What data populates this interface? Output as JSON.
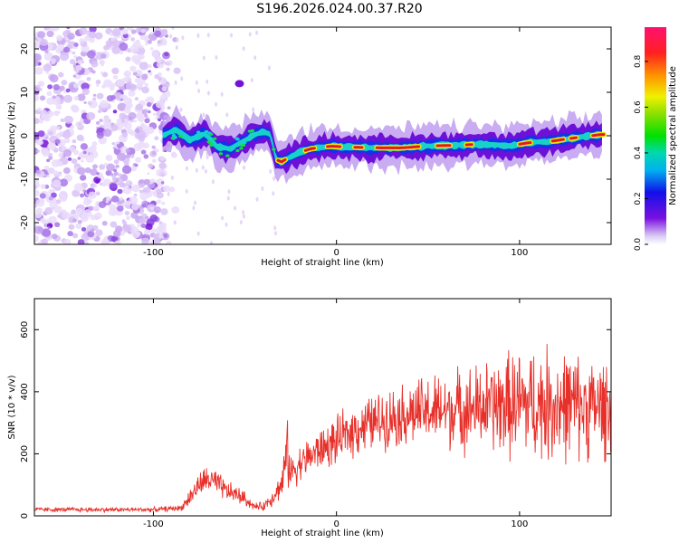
{
  "title": "S196.2026.024.00.37.R20",
  "colors": {
    "snr_line": "#e8302a",
    "axis": "#000000",
    "spec_low": "#c9a6f2",
    "spec_mid": "#6a0fd8",
    "spec_hot": "#e0192a"
  },
  "chart_data": [
    {
      "type": "heatmap",
      "title": "",
      "xlabel": "Height of straight line (km)",
      "ylabel": "Frequency (Hz)",
      "xlim": [
        -165,
        150
      ],
      "ylim": [
        -25,
        25
      ],
      "x_ticks": [
        -100,
        0,
        100
      ],
      "x_tick_labels": [
        "-100",
        "0",
        "100"
      ],
      "y_ticks": [
        -20,
        -10,
        0,
        10,
        20
      ],
      "y_tick_labels": [
        "-20",
        "-10",
        "0",
        "10",
        "20"
      ],
      "ridge": {
        "x": [
          -95,
          -88,
          -80,
          -72,
          -65,
          -58,
          -52,
          -46,
          -40,
          -36,
          -33,
          -30,
          -26,
          -20,
          -14,
          -8,
          -2,
          5,
          15,
          25,
          35,
          45,
          55,
          65,
          75,
          85,
          95,
          105,
          115,
          125,
          135,
          145
        ],
        "freq": [
          0.0,
          1.5,
          -1.0,
          0.5,
          -2.5,
          -3.0,
          -1.5,
          0.0,
          1.0,
          0.2,
          -5.5,
          -6.0,
          -5.0,
          -3.8,
          -3.0,
          -2.6,
          -2.4,
          -2.6,
          -2.7,
          -2.8,
          -2.8,
          -2.5,
          -2.3,
          -2.2,
          -2.0,
          -2.1,
          -2.3,
          -1.6,
          -1.4,
          -0.8,
          -0.2,
          0.3
        ]
      },
      "colorbar": {
        "label": "Normalized spectral amplitude",
        "range": [
          0,
          0.95
        ],
        "ticks": [
          0.0,
          0.2,
          0.4,
          0.6,
          0.8
        ],
        "tick_labels": [
          "0.0",
          "0.2",
          "0.4",
          "0.6",
          "0.8"
        ]
      }
    },
    {
      "type": "line",
      "title": "",
      "xlabel": "Height of straight line (km)",
      "ylabel": "SNR (10 * v/v)",
      "xlim": [
        -165,
        150
      ],
      "ylim": [
        0,
        700
      ],
      "x_ticks": [
        -100,
        0,
        100
      ],
      "x_tick_labels": [
        "-100",
        "0",
        "100"
      ],
      "y_ticks": [
        0,
        200,
        400,
        600
      ],
      "y_tick_labels": [
        "0",
        "200",
        "400",
        "600"
      ],
      "series": [
        {
          "name": "SNR",
          "x": [
            -165,
            -140,
            -120,
            -100,
            -85,
            -80,
            -75,
            -70,
            -65,
            -60,
            -55,
            -50,
            -45,
            -40,
            -35,
            -30,
            -27,
            -25,
            -20,
            -10,
            0,
            10,
            20,
            30,
            40,
            50,
            60,
            70,
            80,
            90,
            100,
            110,
            120,
            130,
            140,
            150
          ],
          "mean": [
            20,
            20,
            20,
            20,
            25,
            60,
            100,
            120,
            100,
            80,
            70,
            55,
            30,
            30,
            60,
            100,
            200,
            140,
            170,
            210,
            240,
            280,
            300,
            320,
            330,
            335,
            340,
            345,
            350,
            355,
            360,
            360,
            360,
            355,
            350,
            350
          ],
          "spread": [
            8,
            8,
            8,
            8,
            10,
            30,
            40,
            50,
            45,
            35,
            30,
            25,
            12,
            15,
            30,
            45,
            120,
            60,
            60,
            70,
            80,
            90,
            95,
            100,
            110,
            120,
            130,
            140,
            150,
            170,
            190,
            190,
            200,
            180,
            170,
            170
          ]
        }
      ]
    }
  ]
}
